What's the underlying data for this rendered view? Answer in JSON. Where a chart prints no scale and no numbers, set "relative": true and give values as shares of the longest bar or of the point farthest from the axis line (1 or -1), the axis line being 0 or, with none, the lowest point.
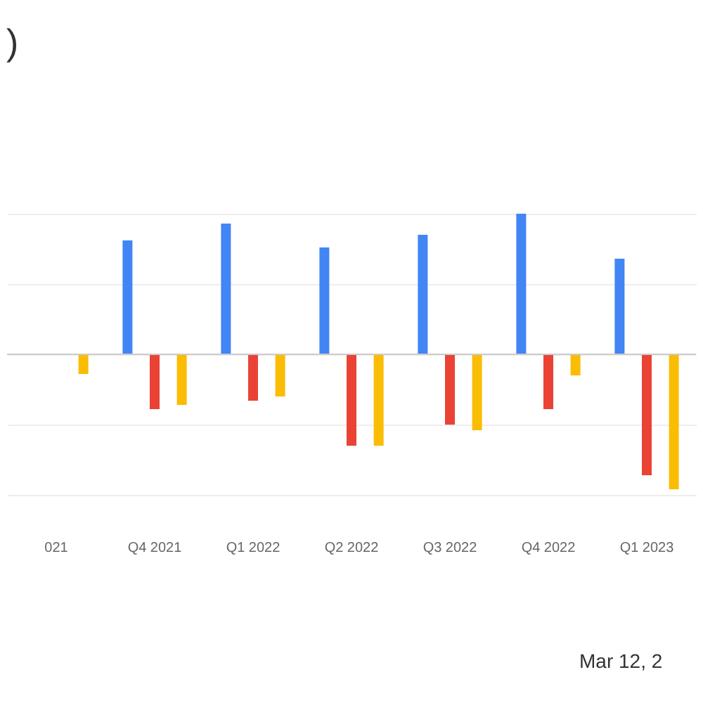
{
  "chart_data": {
    "type": "bar",
    "title": ")",
    "relative": true,
    "grid": true,
    "legend": false,
    "categories": [
      "021",
      "Q4 2021",
      "Q1 2022",
      "Q2 2022",
      "Q3 2022",
      "Q4 2022",
      "Q1 2023"
    ],
    "series": [
      {
        "color": "#4285f4",
        "values": [
          null,
          0.81,
          0.93,
          0.76,
          0.85,
          1,
          0.68
        ]
      },
      {
        "color": "#ea4335",
        "values": [
          null,
          -0.39,
          -0.33,
          -0.65,
          -0.5,
          -0.39,
          -0.86
        ]
      },
      {
        "color": "#fbbc04",
        "values": [
          -0.14,
          -0.36,
          -0.3,
          -0.65,
          -0.54,
          -0.15,
          -0.96
        ]
      }
    ],
    "annotations": [
      "Mar 12, 2"
    ]
  }
}
